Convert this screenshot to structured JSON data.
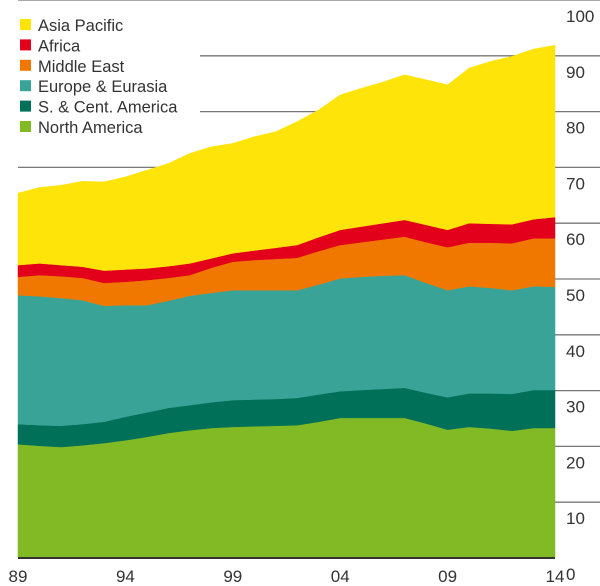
{
  "chart_data": {
    "type": "area",
    "stacked": true,
    "x": [
      1989,
      1990,
      1991,
      1992,
      1993,
      1994,
      1995,
      1996,
      1997,
      1998,
      1999,
      2000,
      2001,
      2002,
      2003,
      2004,
      2005,
      2006,
      2007,
      2008,
      2009,
      2010,
      2011,
      2012,
      2013,
      2014
    ],
    "xtick_labels": [
      "89",
      "94",
      "99",
      "04",
      "09",
      "14"
    ],
    "xtick_values": [
      1989,
      1994,
      1999,
      2004,
      2009,
      2014
    ],
    "ytick_labels": [
      "0",
      "10",
      "20",
      "30",
      "40",
      "50",
      "60",
      "70",
      "80",
      "90",
      "100"
    ],
    "ylim": [
      0,
      100
    ],
    "y_axis_side": "right",
    "grid": "horizontal",
    "legend_position": "top-left",
    "series": [
      {
        "name": "North America",
        "color": "#82ba26",
        "values": [
          20.4,
          20.1,
          19.9,
          20.2,
          20.6,
          21.1,
          21.7,
          22.4,
          22.9,
          23.3,
          23.5,
          23.6,
          23.7,
          23.8,
          24.4,
          25.1,
          25.1,
          25.1,
          25.1,
          24.1,
          23.0,
          23.5,
          23.2,
          22.8,
          23.3,
          23.3
        ]
      },
      {
        "name": "S. & Cent. America",
        "color": "#007058",
        "values": [
          3.6,
          3.7,
          3.8,
          3.8,
          3.8,
          4.2,
          4.4,
          4.5,
          4.5,
          4.6,
          4.8,
          4.8,
          4.8,
          4.9,
          4.9,
          4.8,
          5.0,
          5.2,
          5.4,
          5.5,
          5.8,
          6.0,
          6.3,
          6.6,
          6.8,
          6.8
        ]
      },
      {
        "name": "Europe & Eurasia",
        "color": "#3aa397",
        "values": [
          23.1,
          23.1,
          22.9,
          22.2,
          20.8,
          20.0,
          19.2,
          19.2,
          19.6,
          19.6,
          19.7,
          19.6,
          19.5,
          19.3,
          19.7,
          20.2,
          20.3,
          20.3,
          20.2,
          19.7,
          19.2,
          19.2,
          18.9,
          18.6,
          18.6,
          18.5
        ]
      },
      {
        "name": "Middle East",
        "color": "#f07800",
        "values": [
          3.3,
          3.8,
          3.9,
          4.0,
          4.1,
          4.2,
          4.5,
          4.1,
          3.7,
          4.5,
          5.1,
          5.4,
          5.6,
          5.8,
          6.0,
          6.0,
          6.2,
          6.5,
          6.9,
          7.3,
          7.7,
          7.8,
          8.1,
          8.4,
          8.6,
          8.7
        ]
      },
      {
        "name": "Africa",
        "color": "#e3001b",
        "values": [
          2.1,
          2.1,
          2.0,
          2.0,
          2.2,
          2.2,
          2.1,
          2.1,
          2.1,
          1.7,
          1.5,
          1.7,
          2.0,
          2.3,
          2.5,
          2.7,
          2.8,
          2.9,
          3.0,
          3.1,
          3.1,
          3.5,
          3.4,
          3.4,
          3.4,
          3.8
        ]
      },
      {
        "name": "Asia Pacific",
        "color": "#ffe40a",
        "values": [
          12.9,
          13.6,
          14.3,
          15.3,
          15.9,
          16.6,
          17.6,
          18.4,
          19.7,
          20.0,
          19.7,
          20.4,
          20.8,
          22.1,
          22.8,
          24.2,
          24.8,
          25.3,
          26.0,
          26.0,
          26.0,
          27.8,
          29.1,
          30.1,
          30.5,
          30.8
        ]
      }
    ],
    "legend_order": [
      "Asia Pacific",
      "Africa",
      "Middle East",
      "Europe & Eurasia",
      "S. & Cent. America",
      "North America"
    ]
  }
}
